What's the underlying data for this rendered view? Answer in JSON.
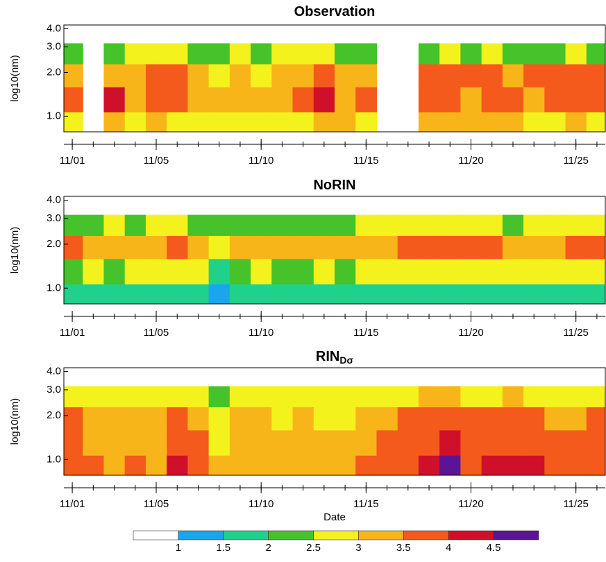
{
  "chart_data": [
    {
      "type": "heatmap",
      "title": "Observation",
      "ylabel": "log10(nm)",
      "x": [
        1,
        2,
        3,
        4,
        5,
        6,
        7,
        8,
        9,
        10,
        11,
        12,
        13,
        14,
        15,
        16,
        17,
        18,
        19,
        20,
        21,
        22,
        23,
        24,
        25,
        26
      ],
      "y": [
        0.88,
        1.3,
        1.95,
        2.7
      ],
      "z": [
        [
          2.8,
          null,
          3.2,
          2.8,
          3.0,
          2.7,
          2.8,
          2.5,
          2.8,
          2.7,
          2.8,
          2.8,
          3.0,
          3.1,
          2.7,
          null,
          null,
          3.0,
          3.2,
          3.0,
          3.1,
          3.0,
          2.9,
          2.9,
          3.0,
          2.8
        ],
        [
          3.6,
          null,
          4.0,
          3.4,
          3.8,
          3.7,
          3.3,
          3.0,
          3.2,
          3.1,
          3.3,
          3.6,
          4.0,
          3.4,
          3.7,
          null,
          null,
          3.7,
          3.6,
          3.4,
          3.7,
          3.5,
          3.4,
          3.6,
          3.7,
          3.5
        ],
        [
          3.2,
          null,
          3.0,
          3.2,
          3.5,
          3.6,
          3.0,
          2.8,
          3.0,
          2.9,
          3.2,
          3.3,
          3.5,
          3.1,
          3.3,
          null,
          null,
          3.8,
          3.7,
          3.5,
          3.6,
          3.4,
          3.5,
          3.6,
          3.5,
          3.5
        ],
        [
          2.3,
          null,
          2.4,
          2.5,
          2.6,
          2.5,
          2.4,
          2.3,
          2.5,
          2.4,
          2.6,
          2.7,
          2.5,
          2.4,
          2.3,
          null,
          null,
          2.4,
          2.5,
          2.4,
          2.5,
          2.4,
          2.3,
          2.4,
          2.5,
          2.3
        ]
      ],
      "xlim": [
        0.6,
        26.4
      ],
      "ylim": [
        0.78,
        4.25
      ],
      "ylog": true,
      "xticks": [
        {
          "value": 1,
          "label": "11/01"
        },
        {
          "value": 5,
          "label": "11/05"
        },
        {
          "value": 10,
          "label": "11/10"
        },
        {
          "value": 15,
          "label": "11/15"
        },
        {
          "value": 20,
          "label": "11/20"
        },
        {
          "value": 25,
          "label": "11/25"
        }
      ],
      "yticks": [
        {
          "value": 1,
          "label": "1.0"
        },
        {
          "value": 2,
          "label": "2.0"
        },
        {
          "value": 3,
          "label": "3.0"
        },
        {
          "value": 4,
          "label": "4.0"
        }
      ]
    },
    {
      "type": "heatmap",
      "title": "NoRIN",
      "ylabel": "log10(nm)",
      "x": [
        1,
        2,
        3,
        4,
        5,
        6,
        7,
        8,
        9,
        10,
        11,
        12,
        13,
        14,
        15,
        16,
        17,
        18,
        19,
        20,
        21,
        22,
        23,
        24,
        25,
        26
      ],
      "y": [
        0.88,
        1.3,
        1.95,
        2.7
      ],
      "z": [
        [
          1.6,
          1.7,
          1.6,
          1.7,
          1.8,
          1.6,
          1.7,
          1.4,
          1.7,
          1.6,
          1.7,
          1.8,
          1.7,
          1.6,
          1.7,
          1.8,
          1.7,
          1.6,
          1.8,
          1.7,
          1.6,
          1.5,
          1.7,
          1.6,
          1.7,
          1.6
        ],
        [
          2.4,
          2.6,
          2.3,
          2.5,
          2.7,
          2.6,
          2.5,
          1.9,
          2.4,
          2.5,
          2.3,
          2.4,
          2.5,
          2.4,
          2.6,
          2.8,
          2.9,
          2.6,
          2.7,
          2.8,
          2.9,
          2.6,
          2.5,
          2.7,
          2.6,
          2.8
        ],
        [
          3.6,
          3.2,
          3.4,
          3.2,
          3.3,
          3.7,
          3.1,
          2.6,
          3.1,
          3.3,
          3.2,
          3.1,
          3.3,
          3.2,
          3.3,
          3.4,
          3.6,
          3.5,
          3.7,
          3.6,
          3.5,
          3.2,
          3.3,
          3.4,
          3.5,
          3.6
        ],
        [
          2.4,
          2.3,
          2.5,
          2.4,
          2.5,
          2.6,
          2.4,
          2.1,
          2.3,
          2.4,
          2.3,
          2.4,
          2.4,
          2.3,
          2.5,
          2.6,
          2.7,
          2.6,
          2.6,
          2.7,
          2.6,
          2.4,
          2.5,
          2.5,
          2.6,
          2.6
        ]
      ],
      "xlim": [
        0.6,
        26.4
      ],
      "ylim": [
        0.78,
        4.25
      ],
      "ylog": true,
      "xticks": [
        {
          "value": 1,
          "label": "11/01"
        },
        {
          "value": 5,
          "label": "11/05"
        },
        {
          "value": 10,
          "label": "11/10"
        },
        {
          "value": 15,
          "label": "11/15"
        },
        {
          "value": 20,
          "label": "11/20"
        },
        {
          "value": 25,
          "label": "11/25"
        }
      ],
      "yticks": [
        {
          "value": 1,
          "label": "1.0"
        },
        {
          "value": 2,
          "label": "2.0"
        },
        {
          "value": 3,
          "label": "3.0"
        },
        {
          "value": 4,
          "label": "4.0"
        }
      ]
    },
    {
      "type": "heatmap",
      "title": "RIN",
      "title_subscript": "Dσ",
      "ylabel": "log10(nm)",
      "xlabel": "Date",
      "x": [
        1,
        2,
        3,
        4,
        5,
        6,
        7,
        8,
        9,
        10,
        11,
        12,
        13,
        14,
        15,
        16,
        17,
        18,
        19,
        20,
        21,
        22,
        23,
        24,
        25,
        26
      ],
      "y": [
        0.88,
        1.3,
        1.95,
        2.7
      ],
      "z": [
        [
          3.9,
          3.6,
          3.4,
          3.5,
          3.4,
          4.1,
          3.8,
          3.0,
          3.2,
          3.3,
          3.1,
          3.2,
          3.1,
          3.0,
          3.6,
          3.8,
          3.9,
          4.2,
          4.6,
          3.9,
          4.0,
          4.3,
          4.1,
          3.8,
          3.9,
          3.8
        ],
        [
          3.7,
          3.4,
          3.3,
          3.4,
          3.3,
          3.8,
          3.5,
          2.9,
          3.1,
          3.2,
          3.0,
          3.1,
          3.0,
          3.0,
          3.4,
          3.6,
          3.7,
          3.9,
          4.1,
          3.7,
          3.8,
          3.9,
          3.8,
          3.6,
          3.6,
          3.6
        ],
        [
          3.6,
          3.2,
          3.2,
          3.3,
          3.2,
          3.6,
          3.3,
          2.8,
          3.0,
          3.0,
          2.9,
          3.0,
          2.9,
          2.9,
          3.2,
          3.4,
          3.5,
          3.6,
          3.7,
          3.5,
          3.6,
          3.6,
          3.5,
          3.4,
          3.4,
          3.5
        ],
        [
          2.9,
          2.7,
          2.7,
          2.8,
          2.7,
          2.9,
          2.8,
          2.4,
          2.7,
          2.7,
          2.6,
          2.7,
          2.6,
          2.6,
          2.8,
          2.9,
          2.9,
          3.0,
          3.0,
          2.9,
          2.9,
          3.0,
          2.9,
          2.8,
          2.8,
          2.9
        ]
      ],
      "xlim": [
        0.6,
        26.4
      ],
      "ylim": [
        0.78,
        4.25
      ],
      "ylog": true,
      "xticks": [
        {
          "value": 1,
          "label": "11/01"
        },
        {
          "value": 5,
          "label": "11/05"
        },
        {
          "value": 10,
          "label": "11/10"
        },
        {
          "value": 15,
          "label": "11/15"
        },
        {
          "value": 20,
          "label": "11/20"
        },
        {
          "value": 25,
          "label": "11/25"
        }
      ],
      "yticks": [
        {
          "value": 1,
          "label": "1.0"
        },
        {
          "value": 2,
          "label": "2.0"
        },
        {
          "value": 3,
          "label": "3.0"
        },
        {
          "value": 4,
          "label": "4.0"
        }
      ]
    }
  ],
  "colorbar": {
    "levels": [
      1,
      1.5,
      2,
      2.5,
      3,
      3.5,
      4,
      4.5
    ],
    "colors": [
      "#ffffff",
      "#1aa6ee",
      "#1fd18a",
      "#46c22a",
      "#f4f21c",
      "#f8b51a",
      "#f45a1c",
      "#d0102a",
      "#5b1496"
    ]
  }
}
